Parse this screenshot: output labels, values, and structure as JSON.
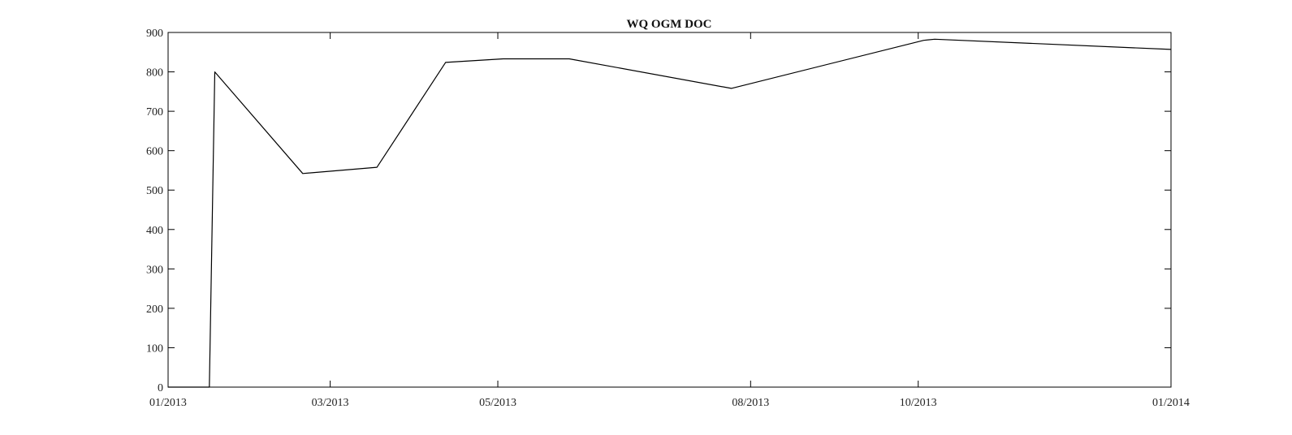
{
  "chart_data": {
    "type": "line",
    "title": "WQ OGM DOC",
    "xlabel": "",
    "ylabel": "",
    "x_tick_labels": [
      "01/2013",
      "03/2013",
      "05/2013",
      "08/2013",
      "10/2013",
      "01/2014"
    ],
    "x_ticks": [
      "2013-01-01",
      "2013-03-01",
      "2013-05-01",
      "2013-08-01",
      "2013-10-01",
      "2014-01-01"
    ],
    "xlim": [
      "2013-01-01",
      "2014-01-01"
    ],
    "y_ticks": [
      0,
      100,
      200,
      300,
      400,
      500,
      600,
      700,
      800,
      900
    ],
    "ylim": [
      0,
      900
    ],
    "grid": false,
    "series": [
      {
        "points": [
          {
            "x": "2013-01-01",
            "y": 0
          },
          {
            "x": "2013-01-16",
            "y": 0
          },
          {
            "x": "2013-01-18",
            "y": 800
          },
          {
            "x": "2013-02-19",
            "y": 542
          },
          {
            "x": "2013-03-18",
            "y": 558
          },
          {
            "x": "2013-04-12",
            "y": 824
          },
          {
            "x": "2013-05-03",
            "y": 833
          },
          {
            "x": "2013-05-27",
            "y": 833
          },
          {
            "x": "2013-07-25",
            "y": 758
          },
          {
            "x": "2013-10-03",
            "y": 880
          },
          {
            "x": "2013-10-07",
            "y": 883
          },
          {
            "x": "2014-01-01",
            "y": 857
          }
        ]
      }
    ]
  }
}
